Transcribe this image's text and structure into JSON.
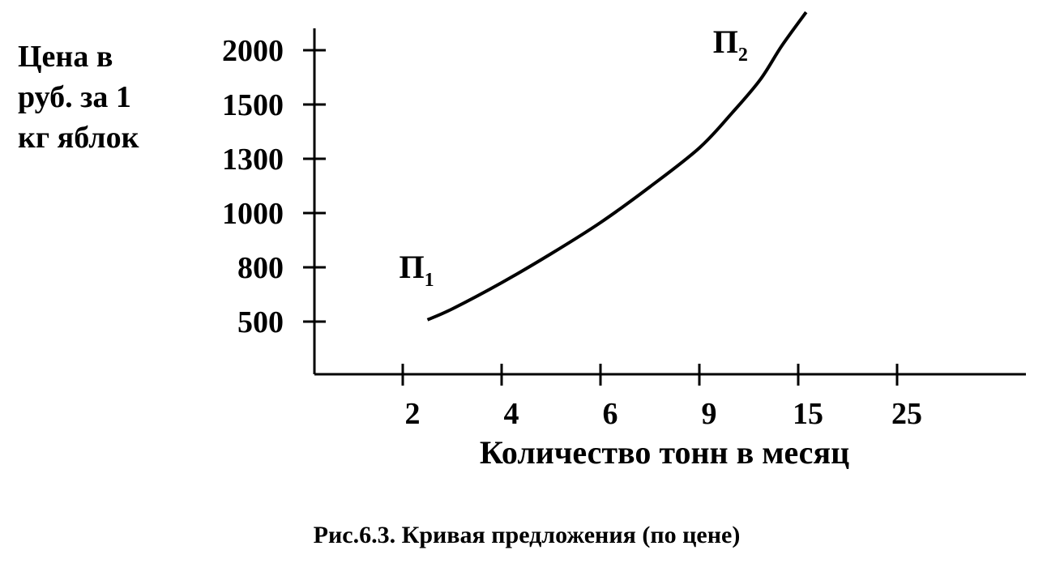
{
  "chart_data": {
    "type": "line",
    "ylabel": [
      "Цена в",
      "руб. за 1",
      "кг яблок"
    ],
    "xlabel": "Количество тонн в месяц",
    "caption": "Рис.6.3. Кривая предложения (по цене)",
    "xticks": [
      2,
      4,
      6,
      9,
      15,
      25
    ],
    "yticks": [
      500,
      800,
      1000,
      1300,
      1500,
      2000
    ],
    "x": [
      2.5,
      3,
      4,
      5,
      6,
      7.5,
      9,
      11,
      12.7,
      14,
      15.8
    ],
    "series": [
      {
        "color": "#000000",
        "values": [
          510,
          570,
          715,
          850,
          965,
          1145,
          1340,
          1470,
          1730,
          2040,
          2350
        ]
      }
    ],
    "annotations": [
      {
        "letter": "П",
        "sub": "1"
      },
      {
        "letter": "П",
        "sub": "2"
      }
    ]
  }
}
